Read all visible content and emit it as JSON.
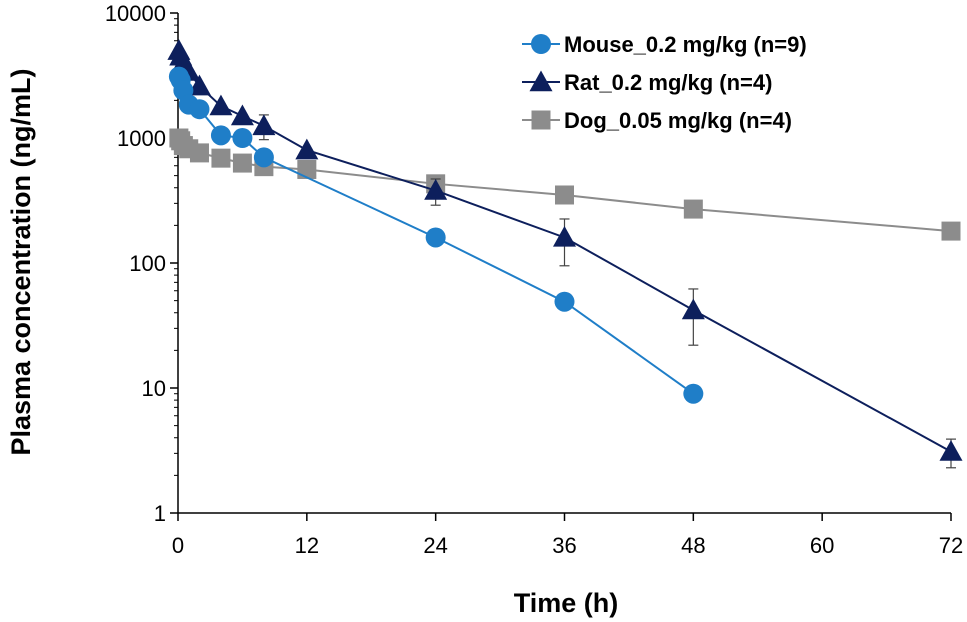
{
  "chart_data": {
    "type": "line",
    "xlabel": "Time (h)",
    "ylabel": "Plasma concentration (ng/mL)",
    "x_scale": "linear",
    "y_scale": "log",
    "xlim": [
      0,
      72
    ],
    "ylim": [
      1,
      10000
    ],
    "x_ticks": [
      0,
      12,
      24,
      36,
      48,
      60,
      72
    ],
    "x_tick_labels": [
      "0",
      "12",
      "24",
      "36",
      "48",
      "60",
      "72"
    ],
    "y_ticks": [
      1,
      10,
      100,
      1000,
      10000
    ],
    "y_tick_labels": [
      "1",
      "10",
      "100",
      "1000",
      "10000"
    ],
    "grid": false,
    "legend_position": "top-right",
    "series": [
      {
        "name": "Mouse_0.2 mg/kg (n=9)",
        "marker": "circle",
        "color": "#1f7ec8",
        "x": [
          0.083,
          0.25,
          0.5,
          1,
          2,
          4,
          6,
          8,
          24,
          36,
          48
        ],
        "y": [
          3100,
          2900,
          2400,
          1850,
          1700,
          1050,
          1000,
          700,
          160,
          49,
          9
        ],
        "error": [
          0,
          0,
          0,
          0,
          0,
          0,
          0,
          0,
          0,
          0,
          0
        ]
      },
      {
        "name": "Rat_0.2 mg/kg (n=4)",
        "marker": "triangle",
        "color": "#0d1f5c",
        "x": [
          0.083,
          0.25,
          0.5,
          1,
          2,
          4,
          6,
          8,
          12,
          24,
          36,
          48,
          72
        ],
        "y": [
          5000,
          4500,
          4000,
          3400,
          2600,
          1800,
          1500,
          1250,
          800,
          380,
          160,
          42,
          3.1
        ],
        "error": [
          0,
          0,
          0,
          0,
          0,
          0,
          0,
          280,
          0,
          90,
          65,
          20,
          0.8
        ]
      },
      {
        "name": "Dog_0.05 mg/kg (n=4)",
        "marker": "square",
        "color": "#8c8c8c",
        "x": [
          0.083,
          0.25,
          0.5,
          1,
          2,
          4,
          6,
          8,
          12,
          24,
          36,
          48,
          72
        ],
        "y": [
          1000,
          950,
          870,
          820,
          760,
          690,
          630,
          590,
          560,
          430,
          350,
          270,
          180
        ],
        "error": [
          0,
          0,
          0,
          0,
          0,
          0,
          0,
          0,
          0,
          0,
          0,
          0,
          0
        ]
      }
    ]
  }
}
